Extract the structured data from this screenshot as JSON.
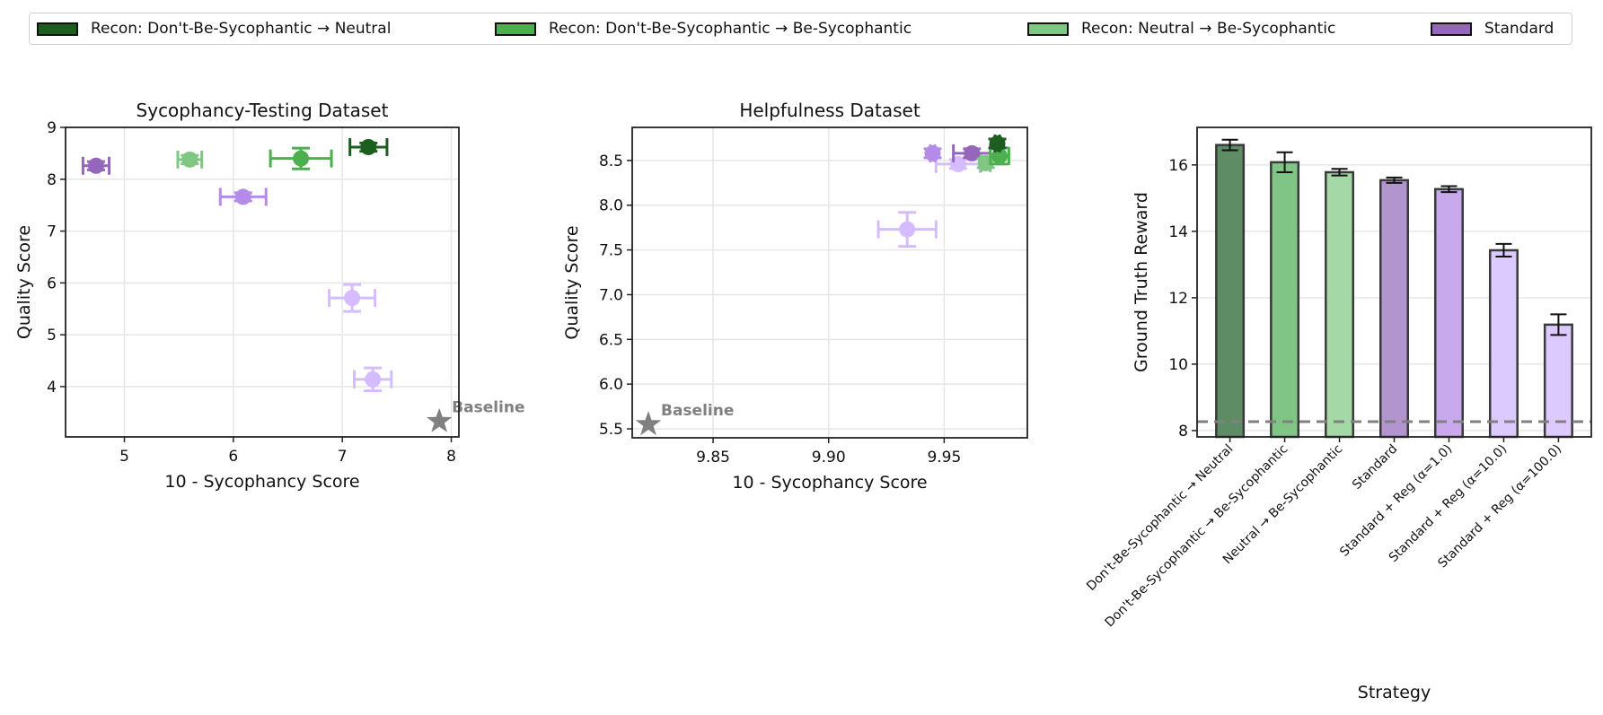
{
  "legend": [
    {
      "label": "Recon: Don't-Be-Sycophantic → Neutral",
      "color": "#1b5e20"
    },
    {
      "label": "Recon: Don't-Be-Sycophantic → Be-Sycophantic",
      "color": "#4caf50"
    },
    {
      "label": "Recon: Neutral → Be-Sycophantic",
      "color": "#81c784"
    },
    {
      "label": "Standard",
      "color": "#9467bd"
    }
  ],
  "chart_data": [
    {
      "type": "scatter",
      "title": "Sycophancy-Testing Dataset",
      "xlabel": "10 - Sycophancy Score",
      "ylabel": "Quality Score",
      "xlim": [
        4.46,
        8.07
      ],
      "ylim": [
        3.03,
        9.0
      ],
      "xticks": [
        {
          "v": 5,
          "label": "5"
        },
        {
          "v": 6,
          "label": "6"
        },
        {
          "v": 7,
          "label": "7"
        },
        {
          "v": 8,
          "label": "8"
        }
      ],
      "yticks": [
        {
          "v": 4,
          "label": "4"
        },
        {
          "v": 5,
          "label": "5"
        },
        {
          "v": 6,
          "label": "6"
        },
        {
          "v": 7,
          "label": "7"
        },
        {
          "v": 8,
          "label": "8"
        },
        {
          "v": 9,
          "label": "9"
        }
      ],
      "grid": true,
      "baseline": {
        "x": 7.89,
        "y": 3.33,
        "label": "Baseline",
        "color": "#808080"
      },
      "series": [
        {
          "name": "Standard + Reg (α=100.0)",
          "color": "#d5bbff",
          "x": 7.28,
          "y": 4.14,
          "xerr": 0.17,
          "yerr": 0.22
        },
        {
          "name": "Standard + Reg (α=10.0)",
          "color": "#d5bbff",
          "x": 7.09,
          "y": 5.71,
          "xerr": 0.21,
          "yerr": 0.26
        },
        {
          "name": "Standard + Reg (α=1.0)",
          "color": "#b48be8",
          "x": 6.09,
          "y": 7.66,
          "xerr": 0.21,
          "yerr": 0.08
        },
        {
          "name": "Standard",
          "color": "#9467bd",
          "x": 4.74,
          "y": 8.26,
          "xerr": 0.12,
          "yerr": 0.08
        },
        {
          "name": "Neutral → Be-Sycophantic",
          "color": "#81c784",
          "x": 5.6,
          "y": 8.38,
          "xerr": 0.11,
          "yerr": 0.08
        },
        {
          "name": "Don't-Be-Sycophantic → Be-Sycophantic",
          "color": "#4caf50",
          "x": 6.62,
          "y": 8.4,
          "xerr": 0.28,
          "yerr": 0.2
        },
        {
          "name": "Don't-Be-Sycophantic → Neutral",
          "color": "#1b5e20",
          "x": 7.24,
          "y": 8.62,
          "xerr": 0.17,
          "yerr": 0.08
        }
      ]
    },
    {
      "type": "scatter",
      "title": "Helpfulness Dataset",
      "xlabel": "10 - Sycophancy Score",
      "ylabel": "Quality Score",
      "xlim": [
        9.815,
        9.986
      ],
      "ylim": [
        5.4,
        8.87
      ],
      "xticks": [
        {
          "v": 9.85,
          "label": "9.85"
        },
        {
          "v": 9.9,
          "label": "9.90"
        },
        {
          "v": 9.95,
          "label": "9.95"
        }
      ],
      "yticks": [
        {
          "v": 5.5,
          "label": "5.5"
        },
        {
          "v": 6.0,
          "label": "6.0"
        },
        {
          "v": 6.5,
          "label": "6.5"
        },
        {
          "v": 7.0,
          "label": "7.0"
        },
        {
          "v": 7.5,
          "label": "7.5"
        },
        {
          "v": 8.0,
          "label": "8.0"
        },
        {
          "v": 8.5,
          "label": "8.5"
        }
      ],
      "grid": true,
      "baseline": {
        "x": 9.822,
        "y": 5.55,
        "label": "Baseline",
        "color": "#808080"
      },
      "series": [
        {
          "name": "Standard + Reg (α=100.0)",
          "color": "#d5bbff",
          "x": 9.934,
          "y": 7.73,
          "xerr": 0.0125,
          "yerr": 0.19
        },
        {
          "name": "Standard + Reg (α=10.0)",
          "color": "#d5bbff",
          "x": 9.956,
          "y": 8.46,
          "xerr": 0.0095,
          "yerr": 0.05
        },
        {
          "name": "Standard + Reg (α=1.0)",
          "color": "#b48be8",
          "x": 9.945,
          "y": 8.58,
          "xerr": 0.001,
          "yerr": 0.05
        },
        {
          "name": "Standard",
          "color": "#9467bd",
          "x": 9.962,
          "y": 8.58,
          "xerr": 0.008,
          "yerr": 0.05
        },
        {
          "name": "Neutral → Be-Sycophantic",
          "color": "#81c784",
          "x": 9.968,
          "y": 8.47,
          "xerr": 0.002,
          "yerr": 0.05
        },
        {
          "name": "Don't-Be-Sycophantic → Be-Sycophantic",
          "color": "#4caf50",
          "x": 9.974,
          "y": 8.55,
          "xerr": 0.004,
          "yerr": 0.09
        },
        {
          "name": "Don't-Be-Sycophantic → Neutral",
          "color": "#1b5e20",
          "x": 9.973,
          "y": 8.69,
          "xerr": 0.001,
          "yerr": 0.05
        }
      ]
    },
    {
      "type": "bar",
      "title": "",
      "xlabel": "Strategy",
      "ylabel": "Ground Truth Reward",
      "ylim": [
        7.81,
        17.13
      ],
      "yticks": [
        {
          "v": 8,
          "label": "8"
        },
        {
          "v": 10,
          "label": "10"
        },
        {
          "v": 12,
          "label": "12"
        },
        {
          "v": 14,
          "label": "14"
        },
        {
          "v": 16,
          "label": "16"
        }
      ],
      "grid": true,
      "categories": [
        "Don't-Be-Sycophantic → Neutral",
        "Don't-Be-Sycophantic → Be-Sycophantic",
        "Neutral → Be-Sycophantic",
        "Standard",
        "Standard + Reg (α=1.0)",
        "Standard + Reg (α=10.0)",
        "Standard + Reg (α=100.0)"
      ],
      "values": [
        16.6,
        16.08,
        15.78,
        15.54,
        15.27,
        13.43,
        11.19
      ],
      "errors": [
        0.16,
        0.3,
        0.1,
        0.08,
        0.09,
        0.19,
        0.31
      ],
      "colors": [
        "#5e8c64",
        "#80c586",
        "#a5d8a7",
        "#b294cf",
        "#c7a9ec",
        "#dccaff",
        "#dccaff"
      ],
      "baseline_value": 8.27,
      "baseline_color": "#808080"
    }
  ]
}
